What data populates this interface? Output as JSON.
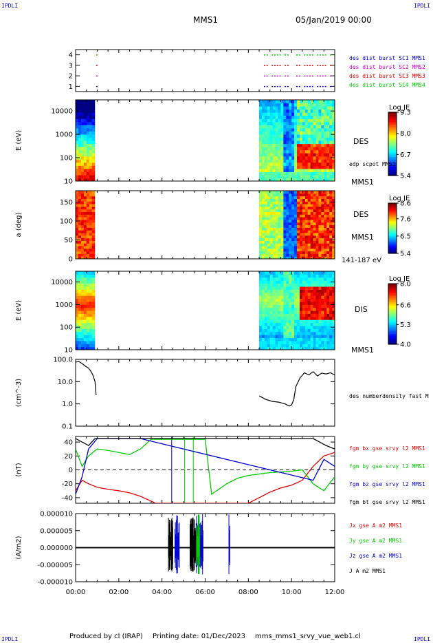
{
  "header": {
    "corner_tl": "IPDLI",
    "corner_tr": "IPDLI",
    "corner_bl": "IPDLI",
    "corner_br": "IPDLI",
    "spacecraft": "MMS1",
    "date": "05/Jan/2019 00:00",
    "footer_producer": "Produced by cl (IRAP)",
    "footer_printing": "Printing date: 01/Dec/2023",
    "footer_file": "mms_mms1_srvy_vue_web1.cl",
    "color_blue": "#0000cc"
  },
  "chart_data": [
    {
      "type": "scatter",
      "panel": "burst-availability",
      "ylim": [
        0.5,
        4.5
      ],
      "yticks": [
        "1",
        "2",
        "3",
        "4"
      ],
      "series": [
        {
          "name": "des dist burst SC1 MMS1",
          "color": "#0000cc",
          "y": 1,
          "intervals_h": [
            [
              0.95,
              0.97
            ],
            [
              8.6,
              9.9
            ],
            [
              10.1,
              11.8
            ]
          ]
        },
        {
          "name": "des dist burst SC2 MMS2",
          "color": "#cc00cc",
          "y": 2,
          "intervals_h": [
            [
              0.95,
              0.97
            ],
            [
              8.6,
              9.9
            ],
            [
              10.1,
              11.8
            ]
          ]
        },
        {
          "name": "des dist burst SC3 MMS3",
          "color": "#dd0000",
          "y": 3,
          "intervals_h": [
            [
              0.95,
              0.97
            ],
            [
              8.6,
              9.9
            ],
            [
              10.1,
              11.8
            ]
          ]
        },
        {
          "name": "des dist burst SC4 MMS4",
          "color": "#00cc00",
          "y": 4,
          "intervals_h": [
            [
              0.95,
              0.97
            ],
            [
              8.6,
              9.9
            ],
            [
              10.1,
              11.8
            ]
          ]
        }
      ]
    },
    {
      "type": "heatmap",
      "panel": "des-energy",
      "ylabel": "E (eV)",
      "yscale": "log",
      "ylim": [
        10,
        30000
      ],
      "yticks": [
        "10",
        "100",
        "1000",
        "10000"
      ],
      "label": "DES",
      "label2": "MMS1",
      "overlay_label": "edp scpot MMS1",
      "colorbar": {
        "title": "Log JE",
        "ticks": [
          "9.3",
          "8.0",
          "6.7",
          "5.4"
        ],
        "min": 5.4,
        "max": 9.3
      },
      "coverage_h": [
        [
          0.0,
          0.88
        ],
        [
          8.5,
          12.0
        ]
      ]
    },
    {
      "type": "heatmap",
      "panel": "des-pitch-angle",
      "ylabel": "a (deg)",
      "ylim": [
        0,
        180
      ],
      "yticks": [
        "0",
        "50",
        "100",
        "150"
      ],
      "label": "DES",
      "label2": "MMS1",
      "label3": "141-187 eV",
      "colorbar": {
        "title": "Log JE",
        "ticks": [
          "8.6",
          "7.6",
          "6.5",
          "5.4"
        ],
        "min": 5.4,
        "max": 8.6
      },
      "coverage_h": [
        [
          0.0,
          0.88
        ],
        [
          8.5,
          12.0
        ]
      ]
    },
    {
      "type": "heatmap",
      "panel": "dis-energy",
      "ylabel": "E (eV)",
      "yscale": "log",
      "ylim": [
        10,
        30000
      ],
      "yticks": [
        "10",
        "100",
        "1000",
        "10000"
      ],
      "label": "DIS",
      "label2": "MMS1",
      "colorbar": {
        "title": "Log JE",
        "ticks": [
          "8.0",
          "6.6",
          "5.3",
          "4.0"
        ],
        "min": 4.0,
        "max": 8.0
      },
      "coverage_h": [
        [
          0.0,
          0.88
        ],
        [
          8.5,
          12.0
        ]
      ]
    },
    {
      "type": "line",
      "panel": "density",
      "ylabel": "(cm^-3)",
      "yscale": "log",
      "ylim": [
        0.1,
        100
      ],
      "yticks": [
        "0.1",
        "1.0",
        "10.0",
        "100.0"
      ],
      "series": [
        {
          "name": "des numberdensity fast M",
          "color": "#000000",
          "x": [
            0.0,
            0.15,
            0.3,
            0.45,
            0.6,
            0.7,
            0.8,
            0.9,
            0.95,
            8.5,
            8.8,
            9.1,
            9.4,
            9.7,
            9.9,
            10.0,
            10.1,
            10.2,
            10.4,
            10.6,
            10.8,
            11.0,
            11.2,
            11.4,
            11.6,
            11.8,
            12.0
          ],
          "y": [
            75,
            80,
            65,
            50,
            40,
            30,
            20,
            10,
            2.5,
            2.3,
            1.6,
            1.3,
            1.2,
            1.0,
            0.8,
            0.9,
            1.5,
            6,
            15,
            25,
            20,
            28,
            18,
            24,
            22,
            25,
            20
          ]
        }
      ]
    },
    {
      "type": "line",
      "panel": "magnetic-field",
      "ylabel": "(nT)",
      "ylim": [
        -48,
        48
      ],
      "yticks": [
        "-40",
        "-20",
        "0",
        "20",
        "40"
      ],
      "series": [
        {
          "name": "fgm bx gse srvy l2 MMS1",
          "color": "#dd0000",
          "x": [
            0.0,
            0.3,
            0.6,
            1.0,
            1.5,
            2.0,
            2.5,
            3.0,
            3.5,
            3.7,
            8.0,
            8.5,
            9.0,
            9.5,
            10.0,
            10.5,
            11.0,
            11.5,
            12.0
          ],
          "y": [
            -30,
            -15,
            -20,
            -25,
            -28,
            -30,
            -33,
            -38,
            -45,
            -48,
            -48,
            -40,
            -32,
            -26,
            -22,
            -15,
            5,
            20,
            25
          ]
        },
        {
          "name": "fgm by gse srvy l2 MMS1",
          "color": "#00cc00",
          "x": [
            0.0,
            0.3,
            0.6,
            1.0,
            1.5,
            2.0,
            2.5,
            3.0,
            3.5,
            6.0,
            6.3,
            7.0,
            7.5,
            8.0,
            9.0,
            10.0,
            10.5,
            11.0,
            11.5,
            12.0
          ],
          "y": [
            30,
            5,
            20,
            30,
            28,
            25,
            22,
            30,
            44,
            44,
            -35,
            -20,
            -12,
            -8,
            -4,
            -2,
            0,
            -20,
            -30,
            -10
          ]
        },
        {
          "name": "fgm bz gse srvy l2 MMS1",
          "color": "#0000cc",
          "x": [
            0.0,
            0.3,
            0.6,
            1.0,
            1.5,
            2.0,
            2.5,
            3.0,
            11.0,
            11.5,
            12.0
          ],
          "y": [
            -35,
            -10,
            30,
            45,
            45,
            45,
            45,
            45,
            -15,
            15,
            5
          ]
        },
        {
          "name": "fgm bt gse srvy l2 MMS1",
          "color": "#000000",
          "x": [
            0.0,
            0.3,
            0.6,
            0.9,
            11.0,
            11.3,
            11.6,
            12.0
          ],
          "y": [
            45,
            40,
            35,
            45,
            45,
            40,
            35,
            30
          ]
        }
      ]
    },
    {
      "type": "line",
      "panel": "current-density",
      "ylabel": "(A/m2)",
      "ylim": [
        -1e-05,
        1e-05
      ],
      "yticks": [
        "-0.000010",
        "-0.000005",
        "0.000000",
        "0.000005",
        "0.000010"
      ],
      "xlabel_ticks": [
        "00:00",
        "02:00",
        "04:00",
        "06:00",
        "08:00",
        "10:00",
        "12:00"
      ],
      "series": [
        {
          "name": "Jx gse A m2 MMS1",
          "color": "#dd0000"
        },
        {
          "name": "Jy gse A m2 MMS1",
          "color": "#00cc00"
        },
        {
          "name": "Jz gse A m2 MMS1",
          "color": "#0000cc"
        },
        {
          "name": "J A m2 MMS1",
          "color": "#000000"
        }
      ]
    }
  ]
}
